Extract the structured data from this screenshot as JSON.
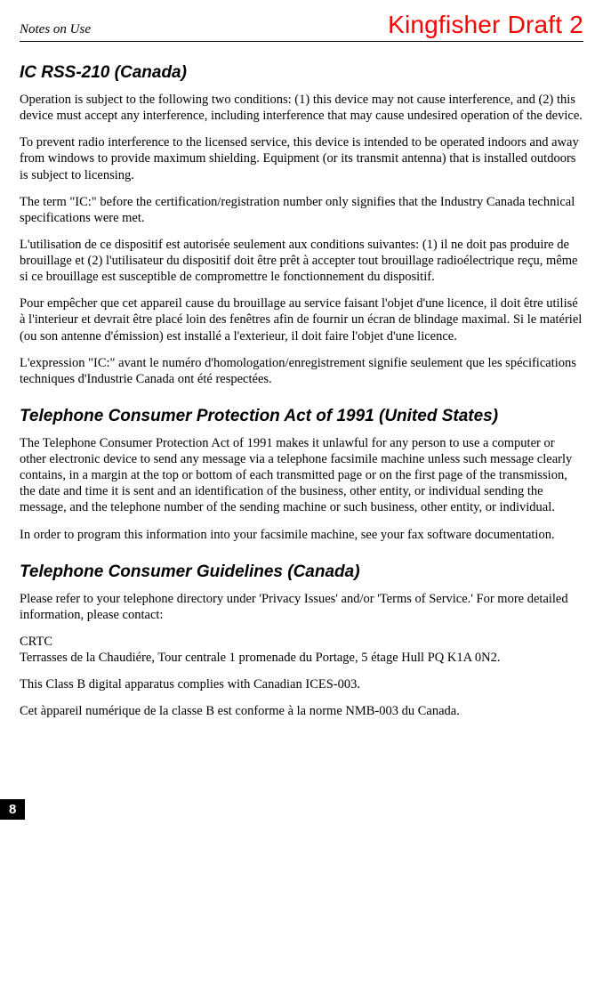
{
  "header": {
    "left": "Notes on Use",
    "right": "Kingfisher Draft 2"
  },
  "sections": {
    "s1": {
      "title": "IC RSS-210 (Canada)",
      "p1": "Operation is subject to the following two conditions: (1) this device may not cause interference, and (2) this device must accept any interference, including interference that may cause undesired operation of the device.",
      "p2": "To prevent radio interference to the licensed service, this device is intended to be operated indoors and away from windows to provide maximum shielding. Equipment (or its transmit antenna) that is installed outdoors is subject to licensing.",
      "p3": "The term \"IC:\" before the certification/registration number only signifies that the Industry Canada technical specifications were met.",
      "p4": "L'utilisation de ce dispositif est autorisée seulement aux conditions suivantes: (1) il ne doit pas produire de brouillage et (2) l'utilisateur du dispositif doit être prêt à accepter tout brouillage radioélectrique reçu, même si ce brouillage est susceptible de compromettre le fonctionnement du dispositif.",
      "p5": "Pour empêcher que cet appareil cause du brouillage au service faisant l'objet d'une licence, il doit être utilisé à l'interieur et devrait être placé loin des fenêtres afin de fournir un écran de blindage maximal. Si le matériel (ou son antenne d'émission) est installé a l'exterieur, il doit faire l'objet d'une licence.",
      "p6": "L'expression \"IC:\" avant le numéro d'homologation/enregistrement signifie seulement que les spécifications techniques d'Industrie Canada ont été respectées."
    },
    "s2": {
      "title": "Telephone Consumer Protection Act of 1991 (United States)",
      "p1": "The Telephone Consumer Protection Act of 1991 makes it unlawful for any person to use a computer or other electronic device to send any message via a telephone facsimile machine unless such message clearly contains, in a margin at the top or bottom of each transmitted page or on the first page of the transmission, the date and time it is sent and an identification of the business, other entity, or individual sending the message, and the telephone number of the sending machine or such business, other entity, or individual.",
      "p2": "In order to program this information into your facsimile machine, see your fax software documentation."
    },
    "s3": {
      "title": "Telephone Consumer Guidelines (Canada)",
      "p1": "Please refer to your telephone directory under 'Privacy Issues' and/or 'Terms of Service.' For more detailed information, please contact:",
      "p2": "CRTC\nTerrasses de la Chaudiére, Tour centrale 1 promenade du Portage, 5 étage Hull PQ K1A 0N2.",
      "p3": "This Class B digital apparatus complies with Canadian ICES-003.",
      "p4": "Cet àppareil numérique de la classe B est conforme à la norme NMB-003 du Canada."
    }
  },
  "page_number": "8"
}
